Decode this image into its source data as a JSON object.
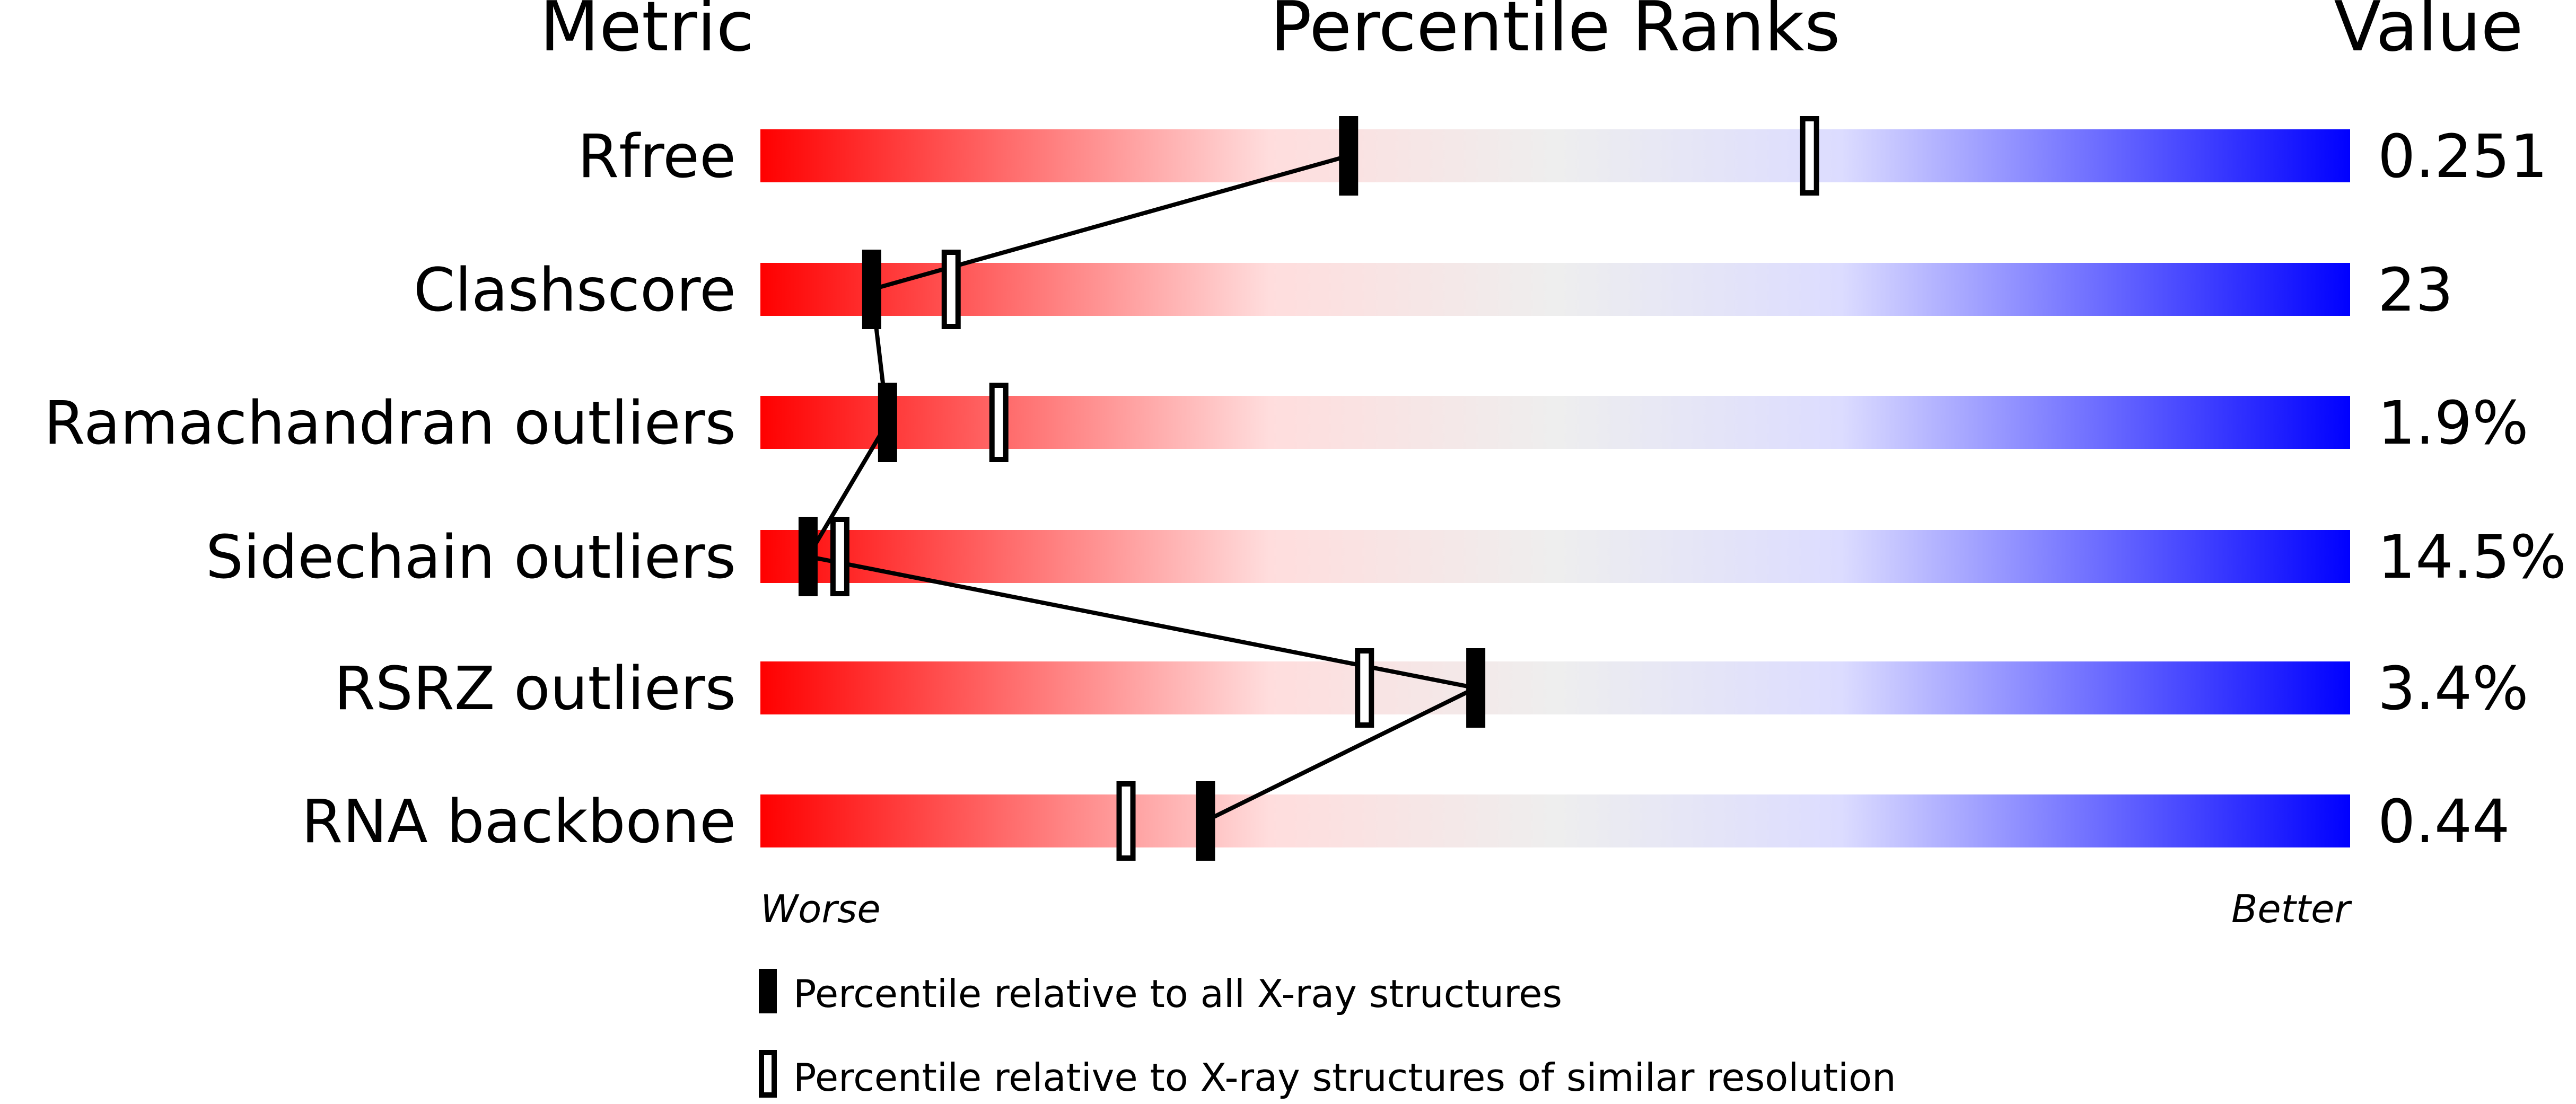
{
  "chart_data": {
    "type": "bar",
    "headers": {
      "metric": "Metric",
      "percentile": "Percentile Ranks",
      "value": "Value"
    },
    "xlim": [
      0,
      100
    ],
    "axis_labels": {
      "worse": "Worse",
      "better": "Better"
    },
    "gradient_colors": [
      "#ff0000",
      "#ffdddd",
      "#eeeeee",
      "#dcdcff",
      "#0000ff"
    ],
    "rows": [
      {
        "metric": "Rfree",
        "value": "0.251",
        "percentile_all": 37,
        "percentile_similar": 66
      },
      {
        "metric": "Clashscore",
        "value": "23",
        "percentile_all": 7,
        "percentile_similar": 12
      },
      {
        "metric": "Ramachandran outliers",
        "value": "1.9%",
        "percentile_all": 8,
        "percentile_similar": 15
      },
      {
        "metric": "Sidechain outliers",
        "value": "14.5%",
        "percentile_all": 3,
        "percentile_similar": 5
      },
      {
        "metric": "RSRZ outliers",
        "value": "3.4%",
        "percentile_all": 45,
        "percentile_similar": 38
      },
      {
        "metric": "RNA backbone",
        "value": "0.44",
        "percentile_all": 28,
        "percentile_similar": 23
      }
    ],
    "legend": [
      {
        "marker": "filled",
        "label": "Percentile relative to all X-ray structures"
      },
      {
        "marker": "open",
        "label": "Percentile relative to X-ray structures of similar resolution"
      }
    ]
  }
}
